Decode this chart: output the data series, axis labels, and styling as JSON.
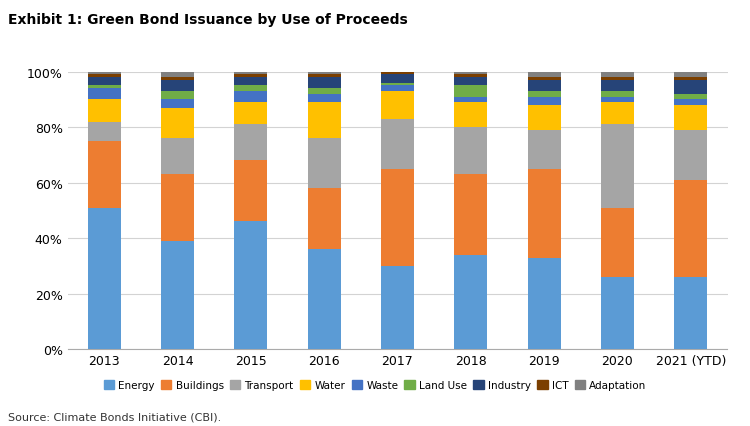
{
  "years": [
    "2013",
    "2014",
    "2015",
    "2016",
    "2017",
    "2018",
    "2019",
    "2020",
    "2021 (YTD)"
  ],
  "categories": [
    "Energy",
    "Buildings",
    "Transport",
    "Water",
    "Waste",
    "Land Use",
    "Industry",
    "ICT",
    "Adaptation"
  ],
  "colors": [
    "#5B9BD5",
    "#ED7D31",
    "#A5A5A5",
    "#FFC000",
    "#4472C4",
    "#70AD47",
    "#264478",
    "#7B3F00",
    "#808080"
  ],
  "data": {
    "Energy": [
      51,
      39,
      46,
      36,
      30,
      34,
      33,
      26,
      26
    ],
    "Buildings": [
      24,
      24,
      22,
      22,
      35,
      29,
      32,
      25,
      35
    ],
    "Transport": [
      7,
      13,
      13,
      18,
      18,
      17,
      14,
      30,
      18
    ],
    "Water": [
      8,
      11,
      8,
      13,
      10,
      9,
      9,
      8,
      9
    ],
    "Waste": [
      4,
      3,
      4,
      3,
      2,
      2,
      3,
      2,
      2
    ],
    "Land Use": [
      1,
      3,
      2,
      2,
      1,
      4,
      2,
      2,
      2
    ],
    "Industry": [
      3,
      4,
      3,
      4,
      3,
      3,
      4,
      4,
      5
    ],
    "ICT": [
      1,
      1,
      1,
      1,
      1,
      1,
      1,
      1,
      1
    ],
    "Adaptation": [
      1,
      2,
      1,
      1,
      0,
      1,
      2,
      2,
      2
    ]
  },
  "title": "Exhibit 1: Green Bond Issuance by Use of Proceeds",
  "ylim": [
    0,
    100
  ],
  "yticks": [
    0,
    20,
    40,
    60,
    80,
    100
  ],
  "ytick_labels": [
    "0%",
    "20%",
    "40%",
    "60%",
    "80%",
    "100%"
  ],
  "source": "Source: Climate Bonds Initiative (CBI).",
  "background_color": "#FFFFFF",
  "grid_color": "#D3D3D3",
  "bar_width": 0.45
}
